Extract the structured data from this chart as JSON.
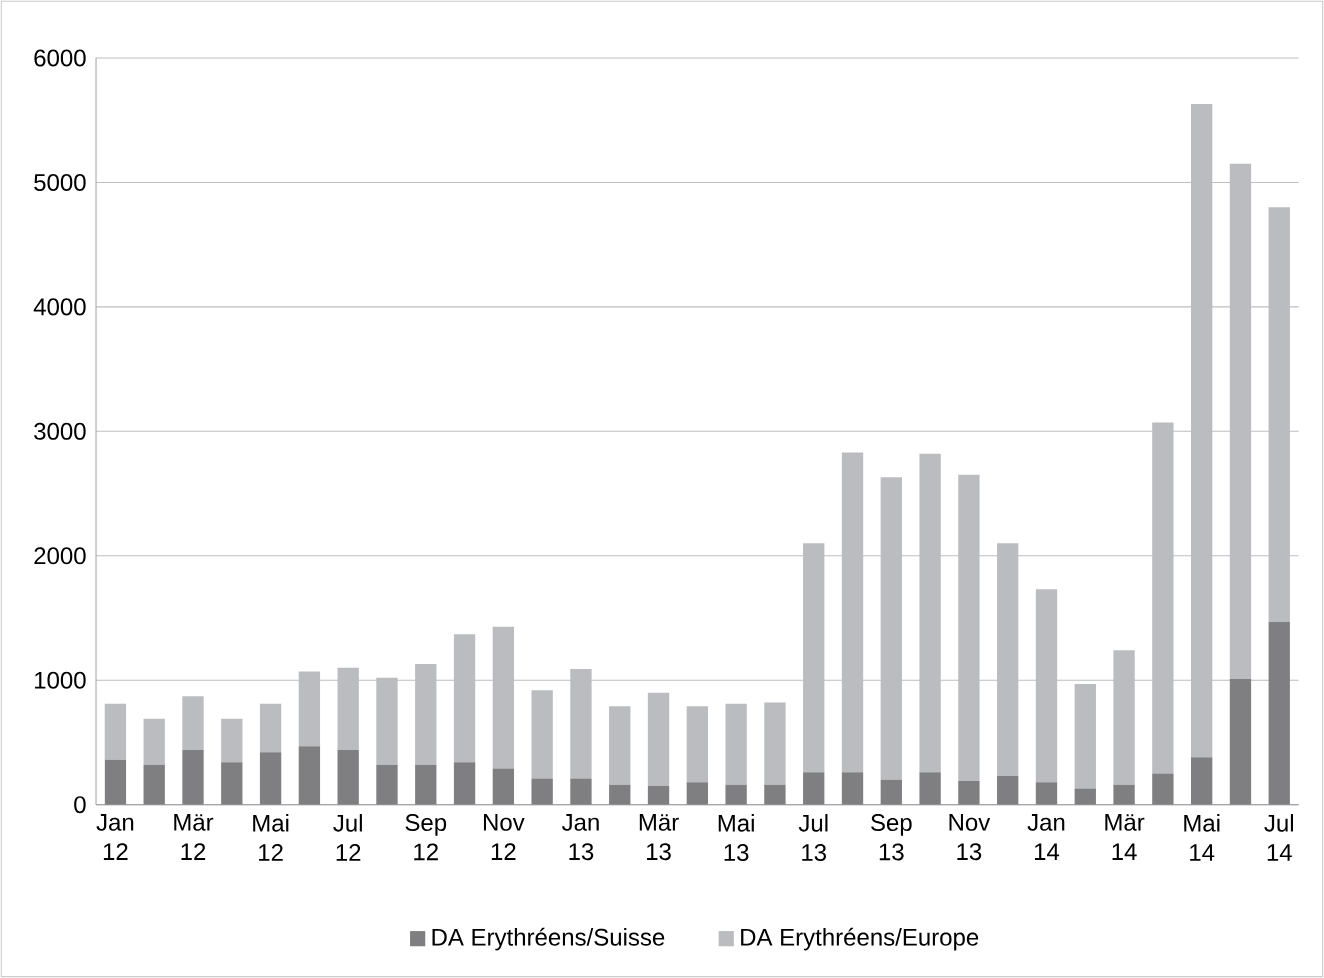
{
  "chart_data": {
    "type": "bar",
    "stacked": true,
    "categories": [
      "Jan 12",
      null,
      "Mär 12",
      null,
      "Mai 12",
      null,
      "Jul 12",
      null,
      "Sep 12",
      null,
      "Nov 12",
      null,
      "Jan 13",
      null,
      "Mär 13",
      null,
      "Mai 13",
      null,
      "Jul 13",
      null,
      "Sep 13",
      null,
      "Nov 13",
      null,
      "Jan 14",
      null,
      "Mär 14",
      null,
      "Mai 14",
      null,
      "Jul 14"
    ],
    "series": [
      {
        "name": "DA Erythréens/Suisse",
        "color": "#7f7f81",
        "values": [
          360,
          320,
          440,
          340,
          420,
          470,
          440,
          320,
          320,
          340,
          290,
          210,
          210,
          160,
          150,
          180,
          160,
          160,
          260,
          260,
          200,
          260,
          190,
          230,
          180,
          130,
          160,
          250,
          380,
          1010,
          1470
        ]
      },
      {
        "name": "DA Erythréens/Europe",
        "color": "#bbbcbf",
        "values": [
          450,
          370,
          430,
          350,
          390,
          600,
          660,
          700,
          810,
          1030,
          1140,
          710,
          880,
          630,
          750,
          610,
          650,
          660,
          1840,
          2570,
          2430,
          2560,
          2460,
          1870,
          1550,
          840,
          1080,
          2820,
          5250,
          4140,
          3330
        ]
      }
    ],
    "ylim": [
      0,
      6000
    ],
    "yticks": [
      0,
      1000,
      2000,
      3000,
      4000,
      5000,
      6000
    ],
    "grid": "y",
    "legend": "bottom"
  }
}
